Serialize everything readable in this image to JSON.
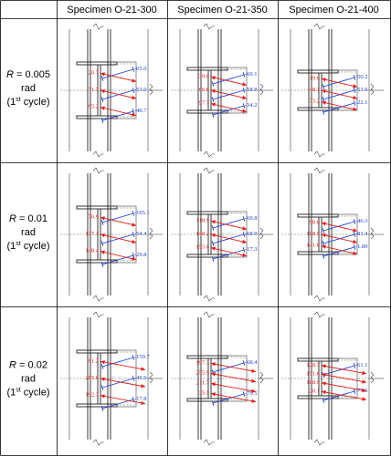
{
  "columns": [
    "Specimen O-21-300",
    "Specimen O-21-350",
    "Specimen O-21-400"
  ],
  "rows": [
    {
      "r_label": "R",
      "r_value": "= 0.005",
      "unit": "rad",
      "cycle_num": "(1",
      "cycle_sup": "st",
      "cycle_end": " cycle)"
    },
    {
      "r_label": "R",
      "r_value": "= 0.01",
      "unit": "rad",
      "cycle_num": "(1",
      "cycle_sup": "st",
      "cycle_end": " cycle)"
    },
    {
      "r_label": "R",
      "r_value": "= 0.02",
      "unit": "rad",
      "cycle_num": "(1",
      "cycle_sup": "st",
      "cycle_end": " cycle)"
    }
  ],
  "colors": {
    "tension": "#e02020",
    "compression": "#1f3fd8"
  },
  "panels": [
    [
      {
        "red": [
          "20.7",
          "71.7",
          "95.2"
        ],
        "blue": [
          "-65.0",
          "-53.0",
          "-40.7"
        ]
      },
      {
        "red": [
          "39.0",
          "66.8",
          "97.7"
        ],
        "blue": [
          "-60.1",
          "-58.8",
          "-34.2"
        ]
      },
      {
        "red": [
          "19.6",
          "48.1",
          "73.2"
        ],
        "blue": [
          "-50.2",
          "-53.9",
          "-22.1"
        ]
      }
    ],
    [
      {
        "red": [
          "70.9",
          "137.1",
          "148.4"
        ],
        "blue": [
          "-105.1",
          "-54.4",
          "-29.8"
        ]
      },
      {
        "red": [
          "118.9",
          "148.2",
          "155.6"
        ],
        "blue": [
          "-60.8",
          "-68.9",
          "-17.3"
        ]
      },
      {
        "red": [
          "90.6",
          "108.5",
          "141.0"
        ],
        "blue": [
          "-46.3",
          "-81.4",
          "-1.89"
        ]
      }
    ],
    [
      {
        "red": [
          "91.2",
          "205.0",
          "192.3"
        ],
        "blue": [
          "-159.7",
          "-49.9",
          "-17.8"
        ]
      },
      {
        "red": [
          "197.3",
          "255.9",
          "211.7",
          "35.1"
        ],
        "blue": [
          "-68.4",
          "-79.5"
        ]
      },
      {
        "red": [
          "128.7",
          "151.6",
          "188.9",
          "20.1"
        ],
        "blue": [
          "-61.1",
          "-77.6"
        ]
      }
    ]
  ]
}
